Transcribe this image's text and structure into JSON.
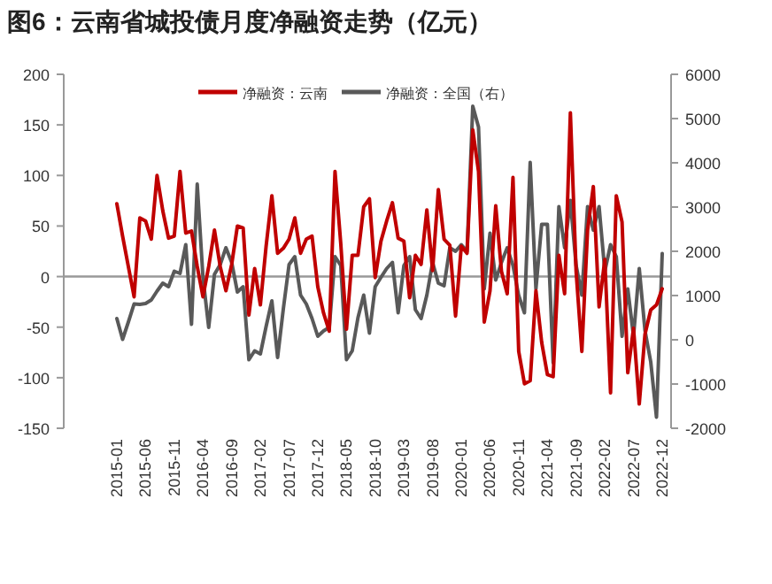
{
  "chart_data": {
    "type": "line",
    "title": "图6：云南省城投债月度净融资走势（亿元）",
    "categories": [
      "2015-01",
      null,
      null,
      null,
      null,
      "2015-06",
      null,
      null,
      null,
      null,
      "2015-11",
      null,
      null,
      null,
      null,
      "2016-04",
      null,
      null,
      null,
      null,
      "2016-09",
      null,
      null,
      null,
      null,
      "2017-02",
      null,
      null,
      null,
      null,
      "2017-07",
      null,
      null,
      null,
      null,
      "2017-12",
      null,
      null,
      null,
      null,
      "2018-05",
      null,
      null,
      null,
      null,
      "2018-10",
      null,
      null,
      null,
      null,
      "2019-03",
      null,
      null,
      null,
      null,
      "2019-08",
      null,
      null,
      null,
      null,
      "2020-01",
      null,
      null,
      null,
      null,
      "2020-06",
      null,
      null,
      null,
      null,
      "2020-11",
      null,
      null,
      null,
      null,
      "2021-04",
      null,
      null,
      null,
      null,
      "2021-09",
      null,
      null,
      null,
      null,
      "2022-02",
      null,
      null,
      null,
      null,
      "2022-07",
      null,
      null,
      null,
      null,
      "2022-12"
    ],
    "series": [
      {
        "name": "净融资：云南",
        "color": "#c00000",
        "values": [
          72,
          40,
          10,
          -20,
          58,
          55,
          37,
          100,
          65,
          38,
          40,
          104,
          43,
          45,
          10,
          -20,
          10,
          46,
          10,
          -14,
          12,
          50,
          48,
          -38,
          8,
          -28,
          30,
          80,
          23,
          28,
          37,
          58,
          23,
          37,
          40,
          -10,
          -36,
          -54,
          104,
          33,
          -52,
          21,
          21,
          69,
          77,
          -1,
          35,
          55,
          73,
          38,
          35,
          -21,
          21,
          12,
          66,
          6,
          86,
          37,
          31,
          -39,
          30,
          23,
          145,
          104,
          -45,
          -14,
          70,
          5,
          -17,
          98,
          -74,
          -106,
          -103,
          -14,
          -65,
          -97,
          -99,
          21,
          -17,
          162,
          5,
          -74,
          46,
          89,
          -30,
          17,
          -115,
          80,
          54,
          -95,
          -51,
          -126,
          -57,
          -33,
          -28,
          -12
        ]
      },
      {
        "name": "净融资：全国（右）",
        "color": "#595959",
        "axis": "y2",
        "values": [
          480,
          10,
          400,
          810,
          800,
          820,
          900,
          1100,
          1280,
          1200,
          1550,
          1500,
          2150,
          350,
          3520,
          1410,
          280,
          1480,
          1700,
          2080,
          1750,
          1080,
          1200,
          -450,
          -250,
          -320,
          300,
          880,
          -400,
          700,
          1700,
          1880,
          1010,
          810,
          480,
          80,
          200,
          280,
          1880,
          1680,
          -450,
          -250,
          500,
          1010,
          150,
          1200,
          1410,
          1610,
          1750,
          610,
          1680,
          1880,
          680,
          480,
          1010,
          1750,
          1280,
          1220,
          2080,
          2000,
          2150,
          2000,
          5280,
          4810,
          1150,
          2410,
          1350,
          1750,
          2080,
          1680,
          1000,
          610,
          4010,
          1150,
          2610,
          2610,
          -520,
          3010,
          2080,
          3150,
          1680,
          1010,
          3010,
          2480,
          3010,
          1550,
          2150,
          1880,
          80,
          1150,
          80,
          1610,
          210,
          -500,
          -1750,
          1950
        ]
      }
    ],
    "ylim": [
      -150,
      200
    ],
    "yticks": [
      -150,
      -100,
      -50,
      0,
      50,
      100,
      150,
      200
    ],
    "y2lim": [
      -2000,
      6000
    ],
    "y2ticks": [
      -2000,
      -1000,
      0,
      1000,
      2000,
      3000,
      4000,
      5000,
      6000
    ],
    "legend": "top"
  }
}
